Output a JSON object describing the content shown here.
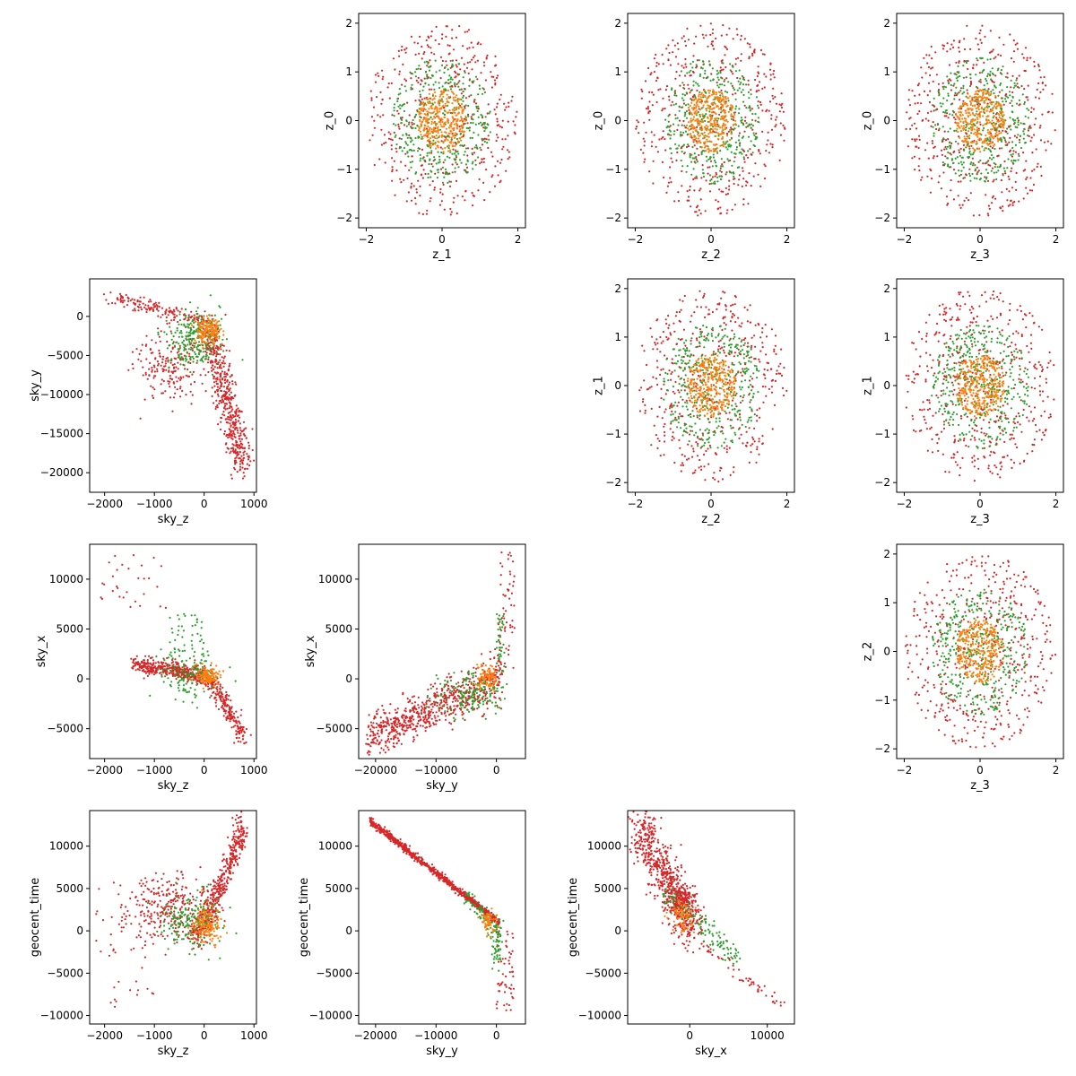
{
  "colors": {
    "inner": "#ff7f0e",
    "middle": "#2ca02c",
    "outer": "#d62728",
    "axis": "#000000"
  },
  "chart_data": [
    {
      "type": "scatter",
      "id": "z0_vs_z1",
      "xlabel": "z_1",
      "ylabel": "z_0",
      "xlim": [
        -2.2,
        2.2
      ],
      "ylim": [
        -2.2,
        2.2
      ],
      "xticks": [
        -2,
        0,
        2
      ],
      "yticks": [
        -2,
        -1,
        0,
        1,
        2
      ],
      "pattern": "rings",
      "ring_radii": [
        0.65,
        1.3,
        2.0
      ],
      "grid": false
    },
    {
      "type": "scatter",
      "id": "z0_vs_z2",
      "xlabel": "z_2",
      "ylabel": "z_0",
      "xlim": [
        -2.2,
        2.2
      ],
      "ylim": [
        -2.2,
        2.2
      ],
      "xticks": [
        -2,
        0,
        2
      ],
      "yticks": [
        -2,
        -1,
        0,
        1,
        2
      ],
      "pattern": "rings",
      "ring_radii": [
        0.65,
        1.3,
        2.0
      ],
      "grid": false
    },
    {
      "type": "scatter",
      "id": "z0_vs_z3",
      "xlabel": "z_3",
      "ylabel": "z_0",
      "xlim": [
        -2.2,
        2.2
      ],
      "ylim": [
        -2.2,
        2.2
      ],
      "xticks": [
        -2,
        0,
        2
      ],
      "yticks": [
        -2,
        -1,
        0,
        1,
        2
      ],
      "pattern": "rings",
      "ring_radii": [
        0.65,
        1.3,
        2.0
      ],
      "grid": false
    },
    {
      "type": "scatter",
      "id": "skyy_vs_skyz",
      "xlabel": "sky_z",
      "ylabel": "sky_y",
      "xlim": [
        -2300,
        1050
      ],
      "ylim": [
        -22500,
        4800
      ],
      "xticks": [
        -2000,
        -1000,
        0,
        1000
      ],
      "yticks": [
        -20000,
        -15000,
        -10000,
        -5000,
        0
      ],
      "pattern": "skyz_skyy",
      "grid": false
    },
    {
      "type": "scatter",
      "id": "z1_vs_z2",
      "xlabel": "z_2",
      "ylabel": "z_1",
      "xlim": [
        -2.2,
        2.2
      ],
      "ylim": [
        -2.2,
        2.2
      ],
      "xticks": [
        -2,
        0,
        2
      ],
      "yticks": [
        -2,
        -1,
        0,
        1,
        2
      ],
      "pattern": "rings",
      "ring_radii": [
        0.65,
        1.3,
        2.0
      ],
      "grid": false
    },
    {
      "type": "scatter",
      "id": "z1_vs_z3",
      "xlabel": "z_3",
      "ylabel": "z_1",
      "xlim": [
        -2.2,
        2.2
      ],
      "ylim": [
        -2.2,
        2.2
      ],
      "xticks": [
        -2,
        0,
        2
      ],
      "yticks": [
        -2,
        -1,
        0,
        1,
        2
      ],
      "pattern": "rings",
      "ring_radii": [
        0.65,
        1.3,
        2.0
      ],
      "grid": false
    },
    {
      "type": "scatter",
      "id": "skyx_vs_skyz",
      "xlabel": "sky_z",
      "ylabel": "sky_x",
      "xlim": [
        -2300,
        1050
      ],
      "ylim": [
        -8000,
        13500
      ],
      "xticks": [
        -2000,
        -1000,
        0,
        1000
      ],
      "yticks": [
        -5000,
        0,
        5000,
        10000
      ],
      "pattern": "skyz_skyx",
      "grid": false
    },
    {
      "type": "scatter",
      "id": "skyx_vs_skyy",
      "xlabel": "sky_y",
      "ylabel": "sky_x",
      "xlim": [
        -22800,
        4800
      ],
      "ylim": [
        -8000,
        13500
      ],
      "xticks": [
        -20000,
        -10000,
        0
      ],
      "yticks": [
        -5000,
        0,
        5000,
        10000
      ],
      "pattern": "skyy_skyx",
      "grid": false
    },
    {
      "type": "scatter",
      "id": "z2_vs_z3",
      "xlabel": "z_3",
      "ylabel": "z_2",
      "xlim": [
        -2.2,
        2.2
      ],
      "ylim": [
        -2.2,
        2.2
      ],
      "xticks": [
        -2,
        0,
        2
      ],
      "yticks": [
        -2,
        -1,
        0,
        1,
        2
      ],
      "pattern": "rings",
      "ring_radii": [
        0.65,
        1.3,
        2.0
      ],
      "grid": false
    },
    {
      "type": "scatter",
      "id": "time_vs_skyz",
      "xlabel": "sky_z",
      "ylabel": "geocent_time",
      "xlim": [
        -2300,
        1050
      ],
      "ylim": [
        -11000,
        14200
      ],
      "xticks": [
        -2000,
        -1000,
        0,
        1000
      ],
      "yticks": [
        -10000,
        -5000,
        0,
        5000,
        10000
      ],
      "pattern": "skyz_time",
      "grid": false
    },
    {
      "type": "scatter",
      "id": "time_vs_skyy",
      "xlabel": "sky_y",
      "ylabel": "geocent_time",
      "xlim": [
        -22800,
        4800
      ],
      "ylim": [
        -11000,
        14200
      ],
      "xticks": [
        -20000,
        -10000,
        0
      ],
      "yticks": [
        -10000,
        -5000,
        0,
        5000,
        10000
      ],
      "pattern": "skyy_time",
      "grid": false
    },
    {
      "type": "scatter",
      "id": "time_vs_skyx",
      "xlabel": "sky_x",
      "ylabel": "geocent_time",
      "xlim": [
        -8000,
        13500
      ],
      "ylim": [
        -11000,
        14200
      ],
      "xticks": [
        0,
        10000
      ],
      "yticks": [
        -10000,
        -5000,
        0,
        5000,
        10000
      ],
      "pattern": "skyx_time",
      "grid": false
    }
  ]
}
